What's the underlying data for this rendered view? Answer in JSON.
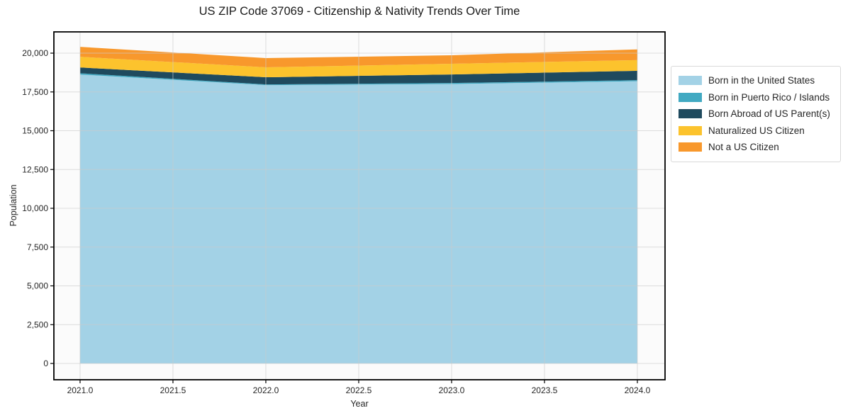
{
  "chart": {
    "title": "US ZIP Code 37069 - Citizenship & Nativity Trends Over Time",
    "xlabel": "Year",
    "ylabel": "Population"
  },
  "chart_data": {
    "type": "area",
    "stacked": true,
    "title": "US ZIP Code 37069 - Citizenship & Nativity Trends Over Time",
    "xlabel": "Year",
    "ylabel": "Population",
    "x": [
      2021,
      2022,
      2023,
      2024
    ],
    "series": [
      {
        "name": "Born in the United States",
        "color": "#a3d2e6",
        "values": [
          18620,
          17940,
          18010,
          18190
        ]
      },
      {
        "name": "Born in Puerto Rico / Islands",
        "color": "#41a9c2",
        "values": [
          85,
          45,
          65,
          70
        ]
      },
      {
        "name": "Born Abroad of US Parent(s)",
        "color": "#1f4a5e",
        "values": [
          370,
          460,
          550,
          600
        ]
      },
      {
        "name": "Naturalized US Citizen",
        "color": "#fcc32d",
        "values": [
          690,
          640,
          690,
          690
        ]
      },
      {
        "name": "Not a US Citizen",
        "color": "#f8982c",
        "values": [
          640,
          595,
          550,
          690
        ]
      }
    ],
    "xlim": [
      2020.859,
      2024.149
    ],
    "ylim": [
      -1050,
      21370
    ],
    "x_ticks": [
      {
        "v": 2021.0,
        "label": "2021.0"
      },
      {
        "v": 2021.5,
        "label": "2021.5"
      },
      {
        "v": 2022.0,
        "label": "2022.0"
      },
      {
        "v": 2022.5,
        "label": "2022.5"
      },
      {
        "v": 2023.0,
        "label": "2023.0"
      },
      {
        "v": 2023.5,
        "label": "2023.5"
      },
      {
        "v": 2024.0,
        "label": "2024.0"
      }
    ],
    "y_ticks": [
      {
        "v": 0,
        "label": "0"
      },
      {
        "v": 2500,
        "label": "2,500"
      },
      {
        "v": 5000,
        "label": "5,000"
      },
      {
        "v": 7500,
        "label": "7,500"
      },
      {
        "v": 10000,
        "label": "10,000"
      },
      {
        "v": 12500,
        "label": "12,500"
      },
      {
        "v": 15000,
        "label": "15,000"
      },
      {
        "v": 17500,
        "label": "17,500"
      },
      {
        "v": 20000,
        "label": "20,000"
      }
    ],
    "grid": true,
    "legend_position": "right",
    "colors": {
      "plot_background": "#fbfbfb",
      "grid_line": "rgba(203,203,203,0.65)",
      "spine": "#000000"
    }
  }
}
